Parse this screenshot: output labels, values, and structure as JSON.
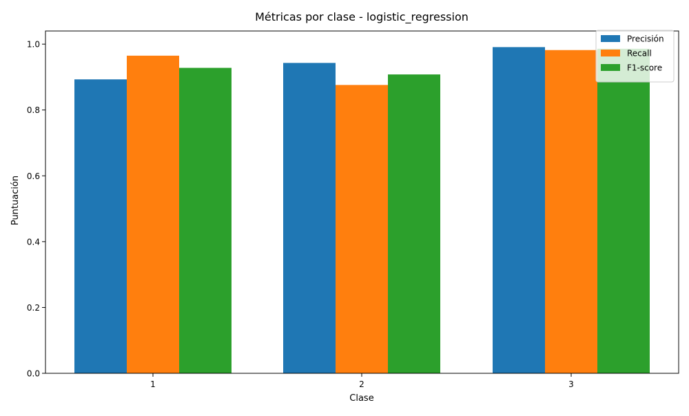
{
  "chart_data": {
    "type": "bar",
    "title": "Métricas por clase - logistic_regression",
    "xlabel": "Clase",
    "ylabel": "Puntuación",
    "categories": [
      "1",
      "2",
      "3"
    ],
    "ylim": [
      0,
      1.04
    ],
    "yticks": [
      "0.0",
      "0.2",
      "0.4",
      "0.6",
      "0.8",
      "1.0"
    ],
    "series": [
      {
        "name": "Precisión",
        "color": "#1f77b4",
        "values": [
          0.893,
          0.943,
          0.991
        ]
      },
      {
        "name": "Recall",
        "color": "#ff7f0e",
        "values": [
          0.965,
          0.876,
          0.982
        ]
      },
      {
        "name": "F1-score",
        "color": "#2ca02c",
        "values": [
          0.928,
          0.908,
          0.986
        ]
      }
    ],
    "legend_position": "top-right",
    "grid": false
  }
}
